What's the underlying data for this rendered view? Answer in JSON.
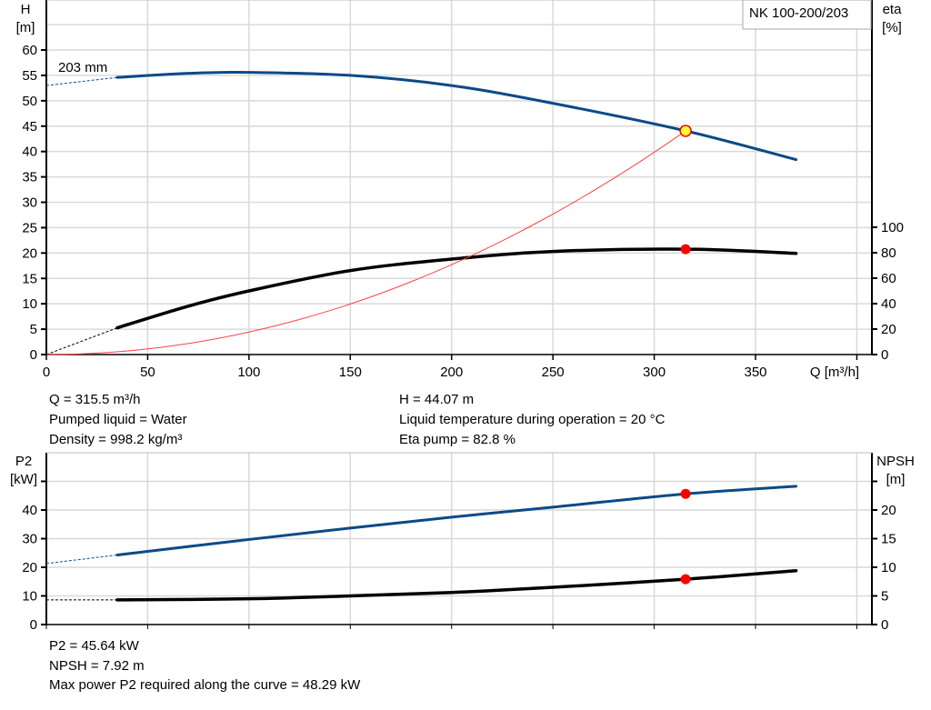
{
  "chart_data": [
    {
      "type": "line",
      "title": "NK 100-200/203",
      "xlabel": "Q [m³/h]",
      "ylabel": "H\n[m]",
      "y2label": "eta\n[%]",
      "xlim": [
        0,
        400
      ],
      "ylim": [
        0,
        65
      ],
      "y2lim": [
        0,
        100
      ],
      "x_ticks": [
        0,
        50,
        100,
        150,
        200,
        250,
        300,
        350
      ],
      "y_ticks": [
        0,
        5,
        10,
        15,
        20,
        25,
        30,
        35,
        40,
        45,
        50,
        55,
        60
      ],
      "y2_ticks": [
        0,
        20,
        40,
        60,
        80,
        100
      ],
      "grid": true,
      "annotation": "203 mm",
      "series": [
        {
          "name": "H",
          "color": "#0b4a86",
          "axis": "left",
          "extrapolated": [
            [
              0,
              53.0
            ],
            [
              35,
              54.6
            ]
          ],
          "points": [
            [
              35,
              54.6
            ],
            [
              70,
              55.4
            ],
            [
              100,
              55.6
            ],
            [
              150,
              55.0
            ],
            [
              200,
              53.0
            ],
            [
              250,
              49.5
            ],
            [
              315.5,
              44.07
            ],
            [
              370,
              38.4
            ]
          ]
        },
        {
          "name": "eta",
          "color": "#000000",
          "axis": "right",
          "extrapolated": [
            [
              0,
              0
            ],
            [
              35,
              21
            ]
          ],
          "points": [
            [
              35,
              21
            ],
            [
              70,
              38
            ],
            [
              100,
              50
            ],
            [
              150,
              66
            ],
            [
              200,
              75
            ],
            [
              250,
              81
            ],
            [
              315.5,
              82.8
            ],
            [
              370,
              79.5
            ]
          ]
        },
        {
          "name": "system",
          "color": "#ff4040",
          "axis": "left",
          "quadratic_to": [
            315.5,
            44.07
          ]
        }
      ],
      "duty_point": {
        "q": 315.5,
        "h": 44.07,
        "eta": 82.8
      }
    },
    {
      "type": "line",
      "xlim": [
        0,
        400
      ],
      "ylabel": "P2\n[kW]",
      "y2label": "NPSH\n[m]",
      "ylim": [
        0,
        55
      ],
      "y2lim": [
        0,
        27.5
      ],
      "y_ticks": [
        0,
        10,
        20,
        30,
        40
      ],
      "y2_ticks": [
        0,
        5,
        10,
        15,
        20
      ],
      "grid": true,
      "series": [
        {
          "name": "P2",
          "color": "#0b4a86",
          "axis": "left",
          "extrapolated": [
            [
              0,
              21.3
            ],
            [
              35,
              24.3
            ]
          ],
          "points": [
            [
              35,
              24.3
            ],
            [
              100,
              29.7
            ],
            [
              150,
              33.7
            ],
            [
              200,
              37.5
            ],
            [
              250,
              41.0
            ],
            [
              315.5,
              45.64
            ],
            [
              370,
              48.29
            ]
          ]
        },
        {
          "name": "NPSH",
          "color": "#000000",
          "axis": "right",
          "extrapolated": [
            [
              0,
              4.3
            ],
            [
              35,
              4.3
            ]
          ],
          "points": [
            [
              35,
              4.3
            ],
            [
              100,
              4.5
            ],
            [
              150,
              5.0
            ],
            [
              200,
              5.6
            ],
            [
              250,
              6.5
            ],
            [
              315.5,
              7.92
            ],
            [
              370,
              9.4
            ]
          ]
        }
      ],
      "duty_point": {
        "q": 315.5,
        "p2": 45.64,
        "npsh": 7.92
      }
    }
  ],
  "info_top": {
    "q": "Q = 315.5 m³/h",
    "liquid": "Pumped liquid = Water",
    "density": "Density = 998.2 kg/m³",
    "h": "H = 44.07 m",
    "temp": "Liquid temperature during operation = 20 °C",
    "eta": "Eta pump = 82.8 %"
  },
  "info_bottom": {
    "p2": "P2 = 45.64 kW",
    "npsh": "NPSH = 7.92 m",
    "max_power": "Max power P2 required along the curve = 48.29 kW"
  }
}
